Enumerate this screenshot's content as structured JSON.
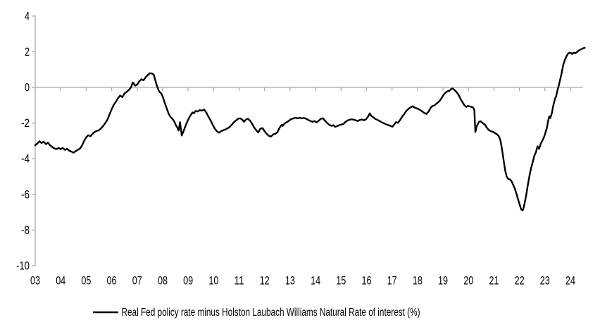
{
  "chart_data": {
    "type": "line",
    "title": "",
    "xlabel": "",
    "ylabel": "",
    "ylim": [
      -10,
      4
    ],
    "xlim_years": [
      2003,
      2024.75
    ],
    "grid": "zero-line-only",
    "axis_color": "#a6a6a6",
    "legend": {
      "position": "bottom",
      "label": "Real Fed policy rate minus Holston Laubach Williams Natural Rate of interest (%)"
    },
    "x_axis": {
      "labels": [
        "03",
        "04",
        "05",
        "06",
        "07",
        "08",
        "09",
        "10",
        "11",
        "12",
        "13",
        "14",
        "15",
        "16",
        "17",
        "18",
        "19",
        "20",
        "21",
        "22",
        "23",
        "24"
      ],
      "tick_years": [
        2003,
        2004,
        2005,
        2006,
        2007,
        2008,
        2009,
        2010,
        2011,
        2012,
        2013,
        2014,
        2015,
        2016,
        2017,
        2018,
        2019,
        2020,
        2021,
        2022,
        2023,
        2024
      ]
    },
    "y_axis": {
      "ticks": [
        4,
        2,
        0,
        -2,
        -4,
        -6,
        -8,
        -10
      ]
    },
    "series": [
      {
        "name": "Real Fed policy rate minus Holston Laubach Williams Natural Rate of interest (%)",
        "color": "#000000",
        "points": [
          [
            2003.0,
            -3.25
          ],
          [
            2003.08,
            -3.15
          ],
          [
            2003.17,
            -3.02
          ],
          [
            2003.25,
            -3.12
          ],
          [
            2003.33,
            -3.04
          ],
          [
            2003.42,
            -3.18
          ],
          [
            2003.5,
            -3.1
          ],
          [
            2003.58,
            -3.24
          ],
          [
            2003.67,
            -3.34
          ],
          [
            2003.75,
            -3.42
          ],
          [
            2003.83,
            -3.46
          ],
          [
            2003.92,
            -3.4
          ],
          [
            2004.0,
            -3.46
          ],
          [
            2004.08,
            -3.4
          ],
          [
            2004.17,
            -3.5
          ],
          [
            2004.25,
            -3.44
          ],
          [
            2004.33,
            -3.54
          ],
          [
            2004.42,
            -3.6
          ],
          [
            2004.5,
            -3.66
          ],
          [
            2004.58,
            -3.58
          ],
          [
            2004.67,
            -3.5
          ],
          [
            2004.75,
            -3.44
          ],
          [
            2004.83,
            -3.28
          ],
          [
            2004.92,
            -3.0
          ],
          [
            2005.0,
            -2.8
          ],
          [
            2005.08,
            -2.68
          ],
          [
            2005.17,
            -2.74
          ],
          [
            2005.25,
            -2.6
          ],
          [
            2005.33,
            -2.5
          ],
          [
            2005.42,
            -2.44
          ],
          [
            2005.5,
            -2.4
          ],
          [
            2005.58,
            -2.3
          ],
          [
            2005.67,
            -2.16
          ],
          [
            2005.75,
            -2.0
          ],
          [
            2005.83,
            -1.82
          ],
          [
            2005.92,
            -1.5
          ],
          [
            2006.0,
            -1.22
          ],
          [
            2006.08,
            -0.98
          ],
          [
            2006.17,
            -0.8
          ],
          [
            2006.25,
            -0.6
          ],
          [
            2006.33,
            -0.46
          ],
          [
            2006.42,
            -0.54
          ],
          [
            2006.5,
            -0.34
          ],
          [
            2006.58,
            -0.26
          ],
          [
            2006.67,
            -0.15
          ],
          [
            2006.75,
            -0.02
          ],
          [
            2006.83,
            0.28
          ],
          [
            2006.92,
            0.1
          ],
          [
            2007.0,
            0.16
          ],
          [
            2007.08,
            0.34
          ],
          [
            2007.17,
            0.46
          ],
          [
            2007.25,
            0.4
          ],
          [
            2007.33,
            0.56
          ],
          [
            2007.42,
            0.7
          ],
          [
            2007.5,
            0.8
          ],
          [
            2007.58,
            0.78
          ],
          [
            2007.65,
            0.72
          ],
          [
            2007.71,
            0.4
          ],
          [
            2007.77,
            0.12
          ],
          [
            2007.83,
            -0.12
          ],
          [
            2007.88,
            -0.26
          ],
          [
            2007.94,
            -0.33
          ],
          [
            2008.0,
            -0.5
          ],
          [
            2008.08,
            -0.85
          ],
          [
            2008.17,
            -1.22
          ],
          [
            2008.25,
            -1.52
          ],
          [
            2008.33,
            -1.7
          ],
          [
            2008.38,
            -1.76
          ],
          [
            2008.46,
            -1.92
          ],
          [
            2008.52,
            -2.12
          ],
          [
            2008.58,
            -2.26
          ],
          [
            2008.63,
            -2.42
          ],
          [
            2008.68,
            -1.95
          ],
          [
            2008.75,
            -2.7
          ],
          [
            2008.83,
            -2.42
          ],
          [
            2008.92,
            -2.08
          ],
          [
            2009.0,
            -1.82
          ],
          [
            2009.08,
            -1.6
          ],
          [
            2009.17,
            -1.4
          ],
          [
            2009.22,
            -1.46
          ],
          [
            2009.29,
            -1.32
          ],
          [
            2009.38,
            -1.35
          ],
          [
            2009.46,
            -1.27
          ],
          [
            2009.54,
            -1.31
          ],
          [
            2009.63,
            -1.24
          ],
          [
            2009.71,
            -1.4
          ],
          [
            2009.79,
            -1.62
          ],
          [
            2009.88,
            -1.85
          ],
          [
            2009.96,
            -2.08
          ],
          [
            2010.04,
            -2.3
          ],
          [
            2010.13,
            -2.46
          ],
          [
            2010.21,
            -2.54
          ],
          [
            2010.29,
            -2.46
          ],
          [
            2010.38,
            -2.4
          ],
          [
            2010.46,
            -2.36
          ],
          [
            2010.54,
            -2.3
          ],
          [
            2010.63,
            -2.22
          ],
          [
            2010.71,
            -2.1
          ],
          [
            2010.79,
            -1.96
          ],
          [
            2010.88,
            -1.85
          ],
          [
            2010.96,
            -1.76
          ],
          [
            2011.04,
            -1.73
          ],
          [
            2011.13,
            -1.82
          ],
          [
            2011.19,
            -1.93
          ],
          [
            2011.27,
            -1.8
          ],
          [
            2011.35,
            -1.76
          ],
          [
            2011.44,
            -1.88
          ],
          [
            2011.52,
            -2.06
          ],
          [
            2011.6,
            -2.26
          ],
          [
            2011.69,
            -2.44
          ],
          [
            2011.75,
            -2.52
          ],
          [
            2011.83,
            -2.32
          ],
          [
            2011.92,
            -2.28
          ],
          [
            2012.0,
            -2.46
          ],
          [
            2012.08,
            -2.6
          ],
          [
            2012.17,
            -2.72
          ],
          [
            2012.25,
            -2.76
          ],
          [
            2012.33,
            -2.64
          ],
          [
            2012.42,
            -2.6
          ],
          [
            2012.5,
            -2.52
          ],
          [
            2012.58,
            -2.28
          ],
          [
            2012.67,
            -2.1
          ],
          [
            2012.71,
            -2.16
          ],
          [
            2012.79,
            -2.02
          ],
          [
            2012.88,
            -1.94
          ],
          [
            2012.96,
            -1.86
          ],
          [
            2013.04,
            -1.78
          ],
          [
            2013.13,
            -1.74
          ],
          [
            2013.21,
            -1.7
          ],
          [
            2013.29,
            -1.73
          ],
          [
            2013.38,
            -1.7
          ],
          [
            2013.46,
            -1.74
          ],
          [
            2013.54,
            -1.71
          ],
          [
            2013.63,
            -1.76
          ],
          [
            2013.71,
            -1.82
          ],
          [
            2013.79,
            -1.88
          ],
          [
            2013.88,
            -1.93
          ],
          [
            2013.96,
            -1.89
          ],
          [
            2014.04,
            -1.97
          ],
          [
            2014.13,
            -1.86
          ],
          [
            2014.21,
            -1.76
          ],
          [
            2014.29,
            -1.73
          ],
          [
            2014.38,
            -1.88
          ],
          [
            2014.46,
            -2.0
          ],
          [
            2014.54,
            -2.1
          ],
          [
            2014.63,
            -2.16
          ],
          [
            2014.69,
            -2.12
          ],
          [
            2014.77,
            -2.21
          ],
          [
            2014.85,
            -2.17
          ],
          [
            2014.94,
            -2.11
          ],
          [
            2015.02,
            -2.08
          ],
          [
            2015.1,
            -2.04
          ],
          [
            2015.17,
            -1.94
          ],
          [
            2015.25,
            -1.86
          ],
          [
            2015.33,
            -1.81
          ],
          [
            2015.42,
            -1.79
          ],
          [
            2015.5,
            -1.81
          ],
          [
            2015.58,
            -1.85
          ],
          [
            2015.65,
            -1.89
          ],
          [
            2015.73,
            -1.83
          ],
          [
            2015.81,
            -1.8
          ],
          [
            2015.9,
            -1.84
          ],
          [
            2015.98,
            -1.79
          ],
          [
            2016.06,
            -1.64
          ],
          [
            2016.13,
            -1.46
          ],
          [
            2016.19,
            -1.6
          ],
          [
            2016.27,
            -1.68
          ],
          [
            2016.35,
            -1.77
          ],
          [
            2016.44,
            -1.83
          ],
          [
            2016.52,
            -1.89
          ],
          [
            2016.6,
            -1.96
          ],
          [
            2016.69,
            -2.01
          ],
          [
            2016.77,
            -2.07
          ],
          [
            2016.85,
            -2.11
          ],
          [
            2016.94,
            -2.16
          ],
          [
            2017.02,
            -2.2
          ],
          [
            2017.1,
            -2.05
          ],
          [
            2017.15,
            -1.95
          ],
          [
            2017.23,
            -1.99
          ],
          [
            2017.31,
            -1.84
          ],
          [
            2017.4,
            -1.64
          ],
          [
            2017.48,
            -1.5
          ],
          [
            2017.56,
            -1.32
          ],
          [
            2017.65,
            -1.2
          ],
          [
            2017.73,
            -1.12
          ],
          [
            2017.81,
            -1.06
          ],
          [
            2017.9,
            -1.14
          ],
          [
            2017.98,
            -1.18
          ],
          [
            2018.06,
            -1.23
          ],
          [
            2018.15,
            -1.31
          ],
          [
            2018.23,
            -1.4
          ],
          [
            2018.31,
            -1.46
          ],
          [
            2018.35,
            -1.49
          ],
          [
            2018.44,
            -1.34
          ],
          [
            2018.52,
            -1.14
          ],
          [
            2018.58,
            -1.05
          ],
          [
            2018.65,
            -1.02
          ],
          [
            2018.71,
            -0.95
          ],
          [
            2018.79,
            -0.86
          ],
          [
            2018.88,
            -0.74
          ],
          [
            2018.96,
            -0.56
          ],
          [
            2019.04,
            -0.38
          ],
          [
            2019.1,
            -0.29
          ],
          [
            2019.17,
            -0.22
          ],
          [
            2019.25,
            -0.19
          ],
          [
            2019.31,
            -0.1
          ],
          [
            2019.38,
            -0.06
          ],
          [
            2019.46,
            -0.16
          ],
          [
            2019.52,
            -0.25
          ],
          [
            2019.58,
            -0.35
          ],
          [
            2019.65,
            -0.52
          ],
          [
            2019.71,
            -0.7
          ],
          [
            2019.79,
            -0.88
          ],
          [
            2019.85,
            -1.02
          ],
          [
            2019.92,
            -1.09
          ],
          [
            2019.98,
            -1.03
          ],
          [
            2020.06,
            -1.07
          ],
          [
            2020.13,
            -1.1
          ],
          [
            2020.19,
            -1.14
          ],
          [
            2020.23,
            -1.28
          ],
          [
            2020.27,
            -2.5
          ],
          [
            2020.33,
            -2.15
          ],
          [
            2020.42,
            -1.92
          ],
          [
            2020.48,
            -1.9
          ],
          [
            2020.56,
            -2.0
          ],
          [
            2020.65,
            -2.1
          ],
          [
            2020.71,
            -2.24
          ],
          [
            2020.79,
            -2.38
          ],
          [
            2020.88,
            -2.46
          ],
          [
            2020.96,
            -2.49
          ],
          [
            2021.04,
            -2.56
          ],
          [
            2021.13,
            -2.64
          ],
          [
            2021.19,
            -2.74
          ],
          [
            2021.25,
            -2.95
          ],
          [
            2021.31,
            -3.4
          ],
          [
            2021.38,
            -4.1
          ],
          [
            2021.44,
            -4.65
          ],
          [
            2021.5,
            -5.0
          ],
          [
            2021.56,
            -5.14
          ],
          [
            2021.63,
            -5.16
          ],
          [
            2021.69,
            -5.26
          ],
          [
            2021.75,
            -5.45
          ],
          [
            2021.81,
            -5.65
          ],
          [
            2021.88,
            -5.95
          ],
          [
            2021.94,
            -6.25
          ],
          [
            2022.0,
            -6.52
          ],
          [
            2022.04,
            -6.72
          ],
          [
            2022.08,
            -6.86
          ],
          [
            2022.13,
            -6.88
          ],
          [
            2022.17,
            -6.72
          ],
          [
            2022.21,
            -6.45
          ],
          [
            2022.27,
            -6.0
          ],
          [
            2022.33,
            -5.45
          ],
          [
            2022.4,
            -4.9
          ],
          [
            2022.46,
            -4.5
          ],
          [
            2022.52,
            -4.2
          ],
          [
            2022.58,
            -3.85
          ],
          [
            2022.65,
            -3.62
          ],
          [
            2022.71,
            -3.3
          ],
          [
            2022.77,
            -3.45
          ],
          [
            2022.83,
            -3.18
          ],
          [
            2022.9,
            -2.98
          ],
          [
            2022.96,
            -2.8
          ],
          [
            2023.02,
            -2.55
          ],
          [
            2023.08,
            -2.25
          ],
          [
            2023.13,
            -1.85
          ],
          [
            2023.17,
            -1.62
          ],
          [
            2023.21,
            -1.72
          ],
          [
            2023.27,
            -1.45
          ],
          [
            2023.31,
            -1.15
          ],
          [
            2023.35,
            -0.88
          ],
          [
            2023.4,
            -0.62
          ],
          [
            2023.44,
            -0.5
          ],
          [
            2023.48,
            -0.22
          ],
          [
            2023.54,
            0.08
          ],
          [
            2023.6,
            0.45
          ],
          [
            2023.65,
            0.76
          ],
          [
            2023.69,
            1.06
          ],
          [
            2023.73,
            1.32
          ],
          [
            2023.79,
            1.56
          ],
          [
            2023.85,
            1.76
          ],
          [
            2023.9,
            1.88
          ],
          [
            2023.96,
            1.95
          ],
          [
            2024.02,
            1.93
          ],
          [
            2024.06,
            1.87
          ],
          [
            2024.13,
            1.95
          ],
          [
            2024.19,
            1.91
          ],
          [
            2024.27,
            2.0
          ],
          [
            2024.35,
            2.09
          ],
          [
            2024.42,
            2.14
          ],
          [
            2024.48,
            2.18
          ],
          [
            2024.56,
            2.22
          ]
        ]
      }
    ]
  }
}
